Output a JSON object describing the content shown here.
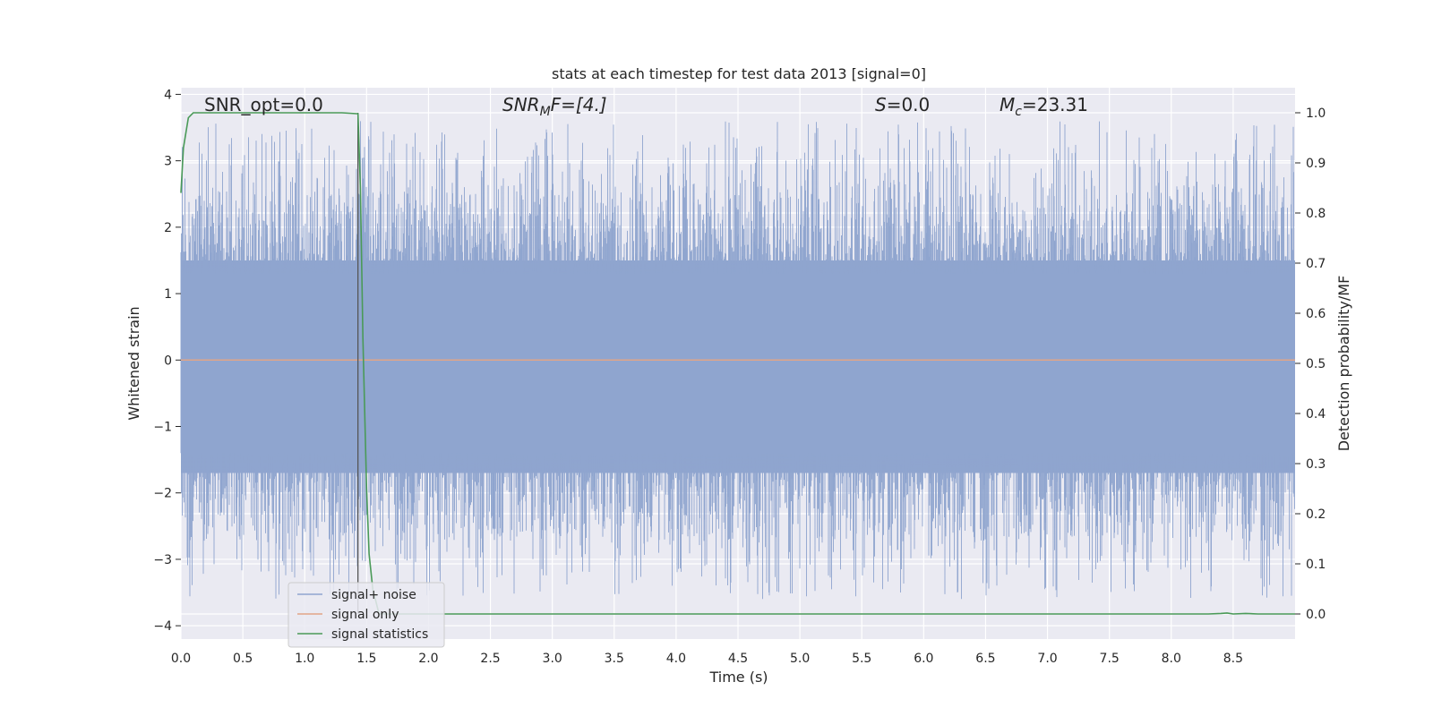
{
  "chart_data": {
    "type": "line",
    "title": "stats at each timestep for test data 2013 [signal=0]",
    "xlabel": "Time (s)",
    "ylabel": "Whitened strain",
    "y2label": "Detection probability/MF",
    "xlim": [
      0.0,
      9.0
    ],
    "ylim": [
      -4.2,
      4.1
    ],
    "y2lim": [
      -0.05,
      1.05
    ],
    "xticks": [
      "0.0",
      "0.5",
      "1.0",
      "1.5",
      "2.0",
      "2.5",
      "3.0",
      "3.5",
      "4.0",
      "4.5",
      "5.0",
      "5.5",
      "6.0",
      "6.5",
      "7.0",
      "7.5",
      "8.0",
      "8.5"
    ],
    "yticks": [
      "4",
      "3",
      "2",
      "1",
      "0",
      "−1",
      "−2",
      "−3",
      "−4"
    ],
    "y2ticks": [
      "1.0",
      "0.9",
      "0.8",
      "0.7",
      "0.6",
      "0.5",
      "0.4",
      "0.3",
      "0.2",
      "0.1",
      "0.0"
    ],
    "grid": true,
    "legend_position": "lower-left",
    "annotations": {
      "snr_opt": "SNR_opt=0.0",
      "snr_mf_base": "SNR",
      "snr_mf_sub": "M",
      "snr_mf_rest": "F=[4.]",
      "s_label": "S",
      "s_value": "=0.0",
      "mc_label": "M",
      "mc_sub": "c",
      "mc_value": "=23.31"
    },
    "marker_line_x": 1.43,
    "series": [
      {
        "name": "signal+ noise",
        "color": "#8fa5cf",
        "description_values": "dense noise band",
        "approx_range": [
          -4.0,
          3.7
        ],
        "typical_range": [
          -1.7,
          1.5
        ]
      },
      {
        "name": "signal only",
        "color": "#e1a587",
        "x": [
          0.0,
          9.0
        ],
        "y": [
          0.0,
          0.0
        ]
      },
      {
        "name": "signal statistics",
        "color": "#4a9a58",
        "axis": "right",
        "x": [
          0.0,
          0.02,
          0.06,
          0.1,
          0.2,
          0.4,
          0.7,
          1.0,
          1.3,
          1.43,
          1.45,
          1.47,
          1.5,
          1.52,
          1.55,
          1.6,
          2.0,
          3.0,
          4.0,
          5.0,
          6.0,
          7.0,
          8.0,
          8.3,
          8.4,
          8.45,
          8.5,
          8.6,
          8.7,
          8.8,
          8.9,
          9.0
        ],
        "y": [
          0.84,
          0.93,
          0.99,
          1.0,
          1.0,
          1.0,
          1.0,
          1.0,
          1.0,
          0.998,
          0.85,
          0.55,
          0.25,
          0.12,
          0.05,
          0.0,
          0.0,
          0.0,
          0.0,
          0.0,
          0.0,
          0.0,
          0.0,
          0.0,
          0.001,
          0.002,
          0.0,
          0.001,
          0.0,
          0.0,
          0.0,
          0.0
        ]
      }
    ]
  }
}
